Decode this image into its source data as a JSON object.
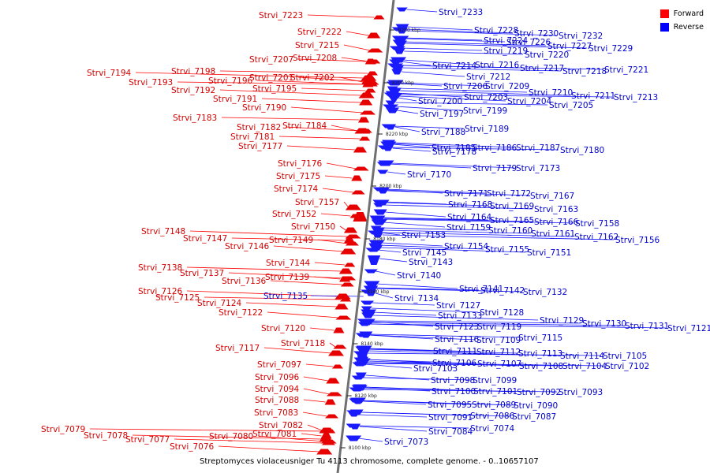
{
  "title": "Streptomyces violaceusniger Tu 4113 chromosome, complete genome. - 0..10657107",
  "legend": [
    {
      "label": "Forward",
      "color": "#ff0000"
    },
    {
      "label": "Reverse",
      "color": "#0000ff"
    }
  ],
  "colors": {
    "forward_fill": "#e60000",
    "forward_line": "#ff0000",
    "reverse_fill": "#1a1aff",
    "reverse_line": "#1111ff",
    "axis": "#707070"
  },
  "ticks": [
    "8200 kbp",
    "8200 kbp",
    "8220 kbp",
    "8200 kbp",
    "8180 kbp",
    "8160 kbp",
    "8140 kbp",
    "8120 kbp",
    "8100 kbp"
  ],
  "forward_genes": [
    "Strvi_7223",
    "Strvi_7222",
    "Strvi_7215",
    "Strvi_7207",
    "Strvi_7208",
    "Strvi_7194",
    "Strvi_7198",
    "Strvi_7201",
    "Strvi_7202",
    "Strvi_7193",
    "Strvi_7196",
    "Strvi_7192",
    "Strvi_7195",
    "Strvi_7191",
    "Strvi_7190",
    "Strvi_7183",
    "Strvi_7182",
    "Strvi_7184",
    "Strvi_7181",
    "Strvi_7177",
    "Strvi_7176",
    "Strvi_7175",
    "Strvi_7174",
    "Strvi_7157",
    "Strvi_7152",
    "Strvi_7150",
    "Strvi_7148",
    "Strvi_7147",
    "Strvi_7149",
    "Strvi_7146",
    "Strvi_7144",
    "Strvi_7138",
    "Strvi_7137",
    "Strvi_7139",
    "Strvi_7136",
    "Strvi_7126",
    "Strvi_7125",
    "Strvi_7124",
    "Strvi_7122",
    "Strvi_7120",
    "Strvi_7118",
    "Strvi_7117",
    "Strvi_7097",
    "Strvi_7096",
    "Strvi_7094",
    "Strvi_7088",
    "Strvi_7083",
    "Strvi_7082",
    "Strvi_7079",
    "Strvi_7078",
    "Strvi_7080",
    "Strvi_7081",
    "Strvi_7077",
    "Strvi_7076"
  ],
  "reverse_genes": [
    "Strvi_7233",
    "Strvi_7228",
    "Strvi_7230",
    "Strvi_7232",
    "Strvi_7224",
    "Strvi_7226",
    "Strvi_7227",
    "Strvi_7229",
    "Strvi_7219",
    "Strvi_7220",
    "Strvi_7214",
    "Strvi_7216",
    "Strvi_7217",
    "Strvi_7218",
    "Strvi_7221",
    "Strvi_7212",
    "Strvi_7206",
    "Strvi_7209",
    "Strvi_7210",
    "Strvi_7211",
    "Strvi_7213",
    "Strvi_7200",
    "Strvi_7203",
    "Strvi_7204",
    "Strvi_7205",
    "Strvi_7197",
    "Strvi_7199",
    "Strvi_7188",
    "Strvi_7189",
    "Strvi_7185",
    "Strvi_7186",
    "Strvi_7187",
    "Strvi_7180",
    "Strvi_7178",
    "Strvi_7179",
    "Strvi_7173",
    "Strvi_7170",
    "Strvi_7171",
    "Strvi_7172",
    "Strvi_7167",
    "Strvi_7168",
    "Strvi_7169",
    "Strvi_7163",
    "Strvi_7164",
    "Strvi_7165",
    "Strvi_7166",
    "Strvi_7158",
    "Strvi_7159",
    "Strvi_7160",
    "Strvi_7161",
    "Strvi_7162",
    "Strvi_7156",
    "Strvi_7153",
    "Strvi_7154",
    "Strvi_7155",
    "Strvi_7151",
    "Strvi_7145",
    "Strvi_7143",
    "Strvi_7140",
    "Strvi_7141",
    "Strvi_7142",
    "Strvi_7132",
    "Strvi_7135",
    "Strvi_7134",
    "Strvi_7127",
    "Strvi_7133",
    "Strvi_7128",
    "Strvi_7129",
    "Strvi_7130",
    "Strvi_7131",
    "Strvi_7121",
    "Strvi_7123",
    "Strvi_7119",
    "Strvi_7115",
    "Strvi_7116",
    "Strvi_7109",
    "Strvi_7111",
    "Strvi_7112",
    "Strvi_7113",
    "Strvi_7114",
    "Strvi_7105",
    "Strvi_7106",
    "Strvi_7107",
    "Strvi_7108",
    "Strvi_7104",
    "Strvi_7102",
    "Strvi_7103",
    "Strvi_7098",
    "Strvi_7099",
    "Strvi_7100",
    "Strvi_7101",
    "Strvi_7092",
    "Strvi_7093",
    "Strvi_7095",
    "Strvi_7089",
    "Strvi_7090",
    "Strvi_7091",
    "Strvi_7086",
    "Strvi_7087",
    "Strvi_7084",
    "Strvi_7074",
    "Strvi_7073"
  ]
}
